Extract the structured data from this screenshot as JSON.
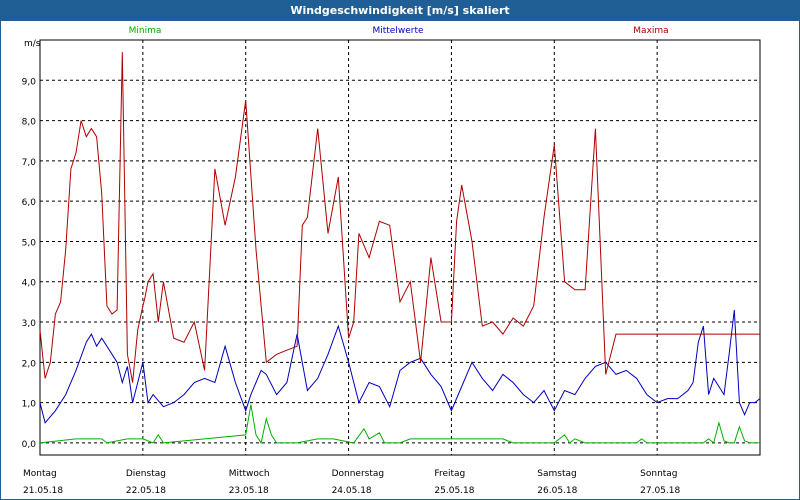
{
  "window": {
    "title": "Windgeschwindigkeit [m/s] skaliert"
  },
  "chart_data": {
    "type": "line",
    "title": "Windgeschwindigkeit [m/s] skaliert",
    "ylabel": "m/s",
    "ylim": [
      -0.3,
      10.0
    ],
    "yticks": [
      "0,0",
      "1,0",
      "2,0",
      "3,0",
      "4,0",
      "5,0",
      "6,0",
      "7,0",
      "8,0",
      "9,0"
    ],
    "grid": true,
    "xlim": [
      0,
      7
    ],
    "x_ticks": [
      {
        "day": "Montag",
        "date": "21.05.18"
      },
      {
        "day": "Dienstag",
        "date": "22.05.18"
      },
      {
        "day": "Mittwoch",
        "date": "23.05.18"
      },
      {
        "day": "Donnerstag",
        "date": "24.05.18"
      },
      {
        "day": "Freitag",
        "date": "25.05.18"
      },
      {
        "day": "Samstag",
        "date": "26.05.18"
      },
      {
        "day": "Sonntag",
        "date": "27.05.18"
      }
    ],
    "series": [
      {
        "name": "Minima",
        "color": "#00b000",
        "x": [
          0,
          0.35,
          0.6,
          0.65,
          0.85,
          1.0,
          1.1,
          1.15,
          1.2,
          2.0,
          2.05,
          2.1,
          2.15,
          2.2,
          2.25,
          2.3,
          2.5,
          2.7,
          2.85,
          3.05,
          3.15,
          3.2,
          3.3,
          3.35,
          3.5,
          3.6,
          4.5,
          4.6,
          5.0,
          5.05,
          5.1,
          5.15,
          5.2,
          5.3,
          5.4,
          5.8,
          5.85,
          5.9,
          6.45,
          6.5,
          6.55,
          6.6,
          6.65,
          6.7,
          6.75,
          6.8,
          6.85,
          6.9,
          7.0
        ],
        "values": [
          0.0,
          0.1,
          0.1,
          0.0,
          0.1,
          0.1,
          0.0,
          0.2,
          0.0,
          0.2,
          0.95,
          0.2,
          0.0,
          0.6,
          0.2,
          0.0,
          0.0,
          0.1,
          0.1,
          0.0,
          0.35,
          0.1,
          0.25,
          0.0,
          0.0,
          0.1,
          0.1,
          0.0,
          0.0,
          0.1,
          0.2,
          0.0,
          0.1,
          0.0,
          0.0,
          0.0,
          0.1,
          0.0,
          0.0,
          0.1,
          0.0,
          0.5,
          0.05,
          0.0,
          0.0,
          0.4,
          0.05,
          0.0,
          0.0
        ]
      },
      {
        "name": "Mittelwerte",
        "color": "#0000c0",
        "x": [
          0,
          0.05,
          0.15,
          0.25,
          0.35,
          0.45,
          0.5,
          0.55,
          0.6,
          0.65,
          0.75,
          0.8,
          0.85,
          0.9,
          1.0,
          1.05,
          1.1,
          1.2,
          1.3,
          1.4,
          1.5,
          1.6,
          1.7,
          1.8,
          1.9,
          2.0,
          2.05,
          2.1,
          2.15,
          2.2,
          2.3,
          2.4,
          2.5,
          2.6,
          2.7,
          2.8,
          2.9,
          3.0,
          3.1,
          3.2,
          3.3,
          3.4,
          3.5,
          3.6,
          3.7,
          3.8,
          3.9,
          4.0,
          4.1,
          4.2,
          4.3,
          4.4,
          4.5,
          4.6,
          4.7,
          4.8,
          4.9,
          5.0,
          5.1,
          5.2,
          5.3,
          5.4,
          5.5,
          5.6,
          5.7,
          5.8,
          5.9,
          6.0,
          6.1,
          6.2,
          6.3,
          6.35,
          6.4,
          6.45,
          6.5,
          6.55,
          6.6,
          6.65,
          6.7,
          6.75,
          6.8,
          6.85,
          6.9,
          6.95,
          7.0
        ],
        "values": [
          1.0,
          0.5,
          0.8,
          1.2,
          1.8,
          2.5,
          2.7,
          2.4,
          2.6,
          2.4,
          2.0,
          1.5,
          1.9,
          1.0,
          2.0,
          1.0,
          1.2,
          0.9,
          1.0,
          1.2,
          1.5,
          1.6,
          1.5,
          2.4,
          1.5,
          0.8,
          1.2,
          1.5,
          1.8,
          1.7,
          1.2,
          1.5,
          2.7,
          1.3,
          1.6,
          2.2,
          2.9,
          2.0,
          1.0,
          1.5,
          1.4,
          0.9,
          1.8,
          2.0,
          2.1,
          1.7,
          1.4,
          0.8,
          1.4,
          2.0,
          1.6,
          1.3,
          1.7,
          1.5,
          1.2,
          1.0,
          1.3,
          0.8,
          1.3,
          1.2,
          1.6,
          1.9,
          2.0,
          1.7,
          1.8,
          1.6,
          1.2,
          1.0,
          1.1,
          1.1,
          1.3,
          1.5,
          2.5,
          2.9,
          1.2,
          1.6,
          1.4,
          1.2,
          2.2,
          3.3,
          1.0,
          0.7,
          1.0,
          1.0,
          1.1
        ]
      },
      {
        "name": "Maxima",
        "color": "#b00000",
        "x": [
          0,
          0.05,
          0.1,
          0.15,
          0.2,
          0.25,
          0.3,
          0.35,
          0.4,
          0.45,
          0.5,
          0.55,
          0.6,
          0.65,
          0.7,
          0.75,
          0.8,
          0.85,
          0.9,
          0.95,
          1.0,
          1.02,
          1.05,
          1.1,
          1.15,
          1.2,
          1.3,
          1.4,
          1.5,
          1.6,
          1.7,
          1.8,
          1.9,
          2.0,
          2.1,
          2.2,
          2.3,
          2.4,
          2.5,
          2.55,
          2.6,
          2.7,
          2.8,
          2.9,
          3.0,
          3.05,
          3.1,
          3.2,
          3.3,
          3.4,
          3.5,
          3.6,
          3.7,
          3.8,
          3.9,
          4.0,
          4.05,
          4.1,
          4.2,
          4.3,
          4.4,
          4.5,
          4.6,
          4.7,
          4.8,
          4.9,
          5.0,
          5.1,
          5.2,
          5.3,
          5.4,
          5.5,
          5.6,
          5.7,
          5.8,
          5.9,
          6.0,
          6.1,
          6.2,
          6.3,
          6.4,
          6.5,
          6.6,
          6.7,
          6.75,
          6.8,
          6.9,
          6.95,
          7.0
        ],
        "values": [
          2.8,
          1.6,
          2.0,
          3.2,
          3.5,
          4.8,
          6.8,
          7.2,
          8.0,
          7.6,
          7.8,
          7.6,
          6.2,
          3.4,
          3.2,
          3.3,
          9.7,
          2.2,
          1.5,
          2.8,
          3.4,
          3.6,
          4.0,
          4.2,
          3.0,
          4.0,
          2.6,
          2.5,
          3.0,
          1.8,
          6.8,
          5.4,
          6.6,
          8.5,
          4.8,
          2.0,
          2.2,
          2.3,
          2.4,
          5.4,
          5.6,
          7.8,
          5.2,
          6.6,
          2.6,
          3.0,
          5.2,
          4.6,
          5.5,
          5.4,
          3.5,
          4.0,
          2.0,
          4.6,
          3.0,
          3.0,
          5.5,
          6.4,
          5.0,
          2.9,
          3.0,
          2.7,
          3.1,
          2.9,
          3.4,
          5.6,
          7.4,
          4.0,
          3.8,
          3.8,
          7.8,
          1.7,
          2.7,
          2.7,
          2.7,
          2.7,
          2.7,
          2.7,
          2.7,
          2.7,
          2.7,
          2.7,
          2.7,
          2.7,
          2.7,
          2.7,
          2.7,
          2.7,
          2.7
        ]
      }
    ]
  }
}
